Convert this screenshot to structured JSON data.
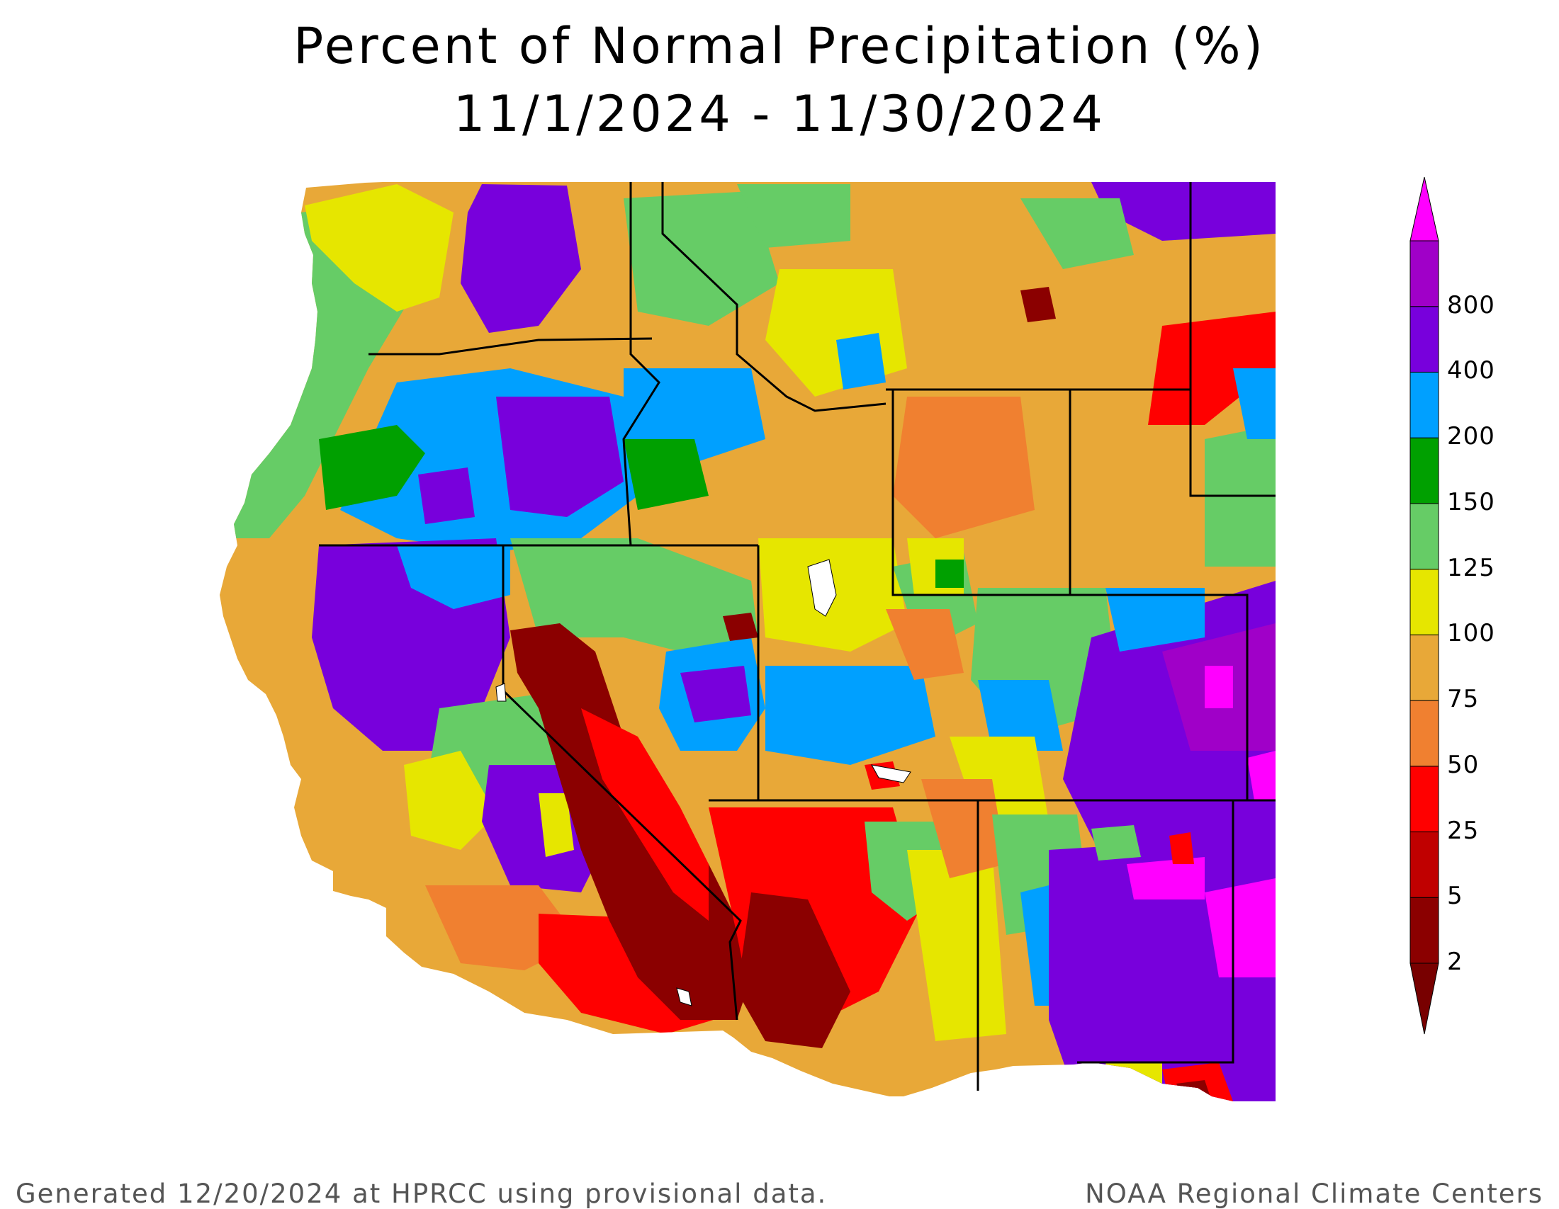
{
  "title": "Percent of Normal Precipitation (%)",
  "date_range": "11/1/2024 - 11/30/2024",
  "footer_left": "Generated 12/20/2024 at HPRCC using provisional data.",
  "footer_right": "NOAA Regional Climate Centers",
  "legend": {
    "levels": [
      {
        "label": "2",
        "color": "#8b0000"
      },
      {
        "label": "5",
        "color": "#c00000"
      },
      {
        "label": "25",
        "color": "#ff0000"
      },
      {
        "label": "50",
        "color": "#f08030"
      },
      {
        "label": "75",
        "color": "#e8a838"
      },
      {
        "label": "100",
        "color": "#e6e600"
      },
      {
        "label": "125",
        "color": "#66cc66"
      },
      {
        "label": "150",
        "color": "#00a000"
      },
      {
        "label": "200",
        "color": "#00a0ff"
      },
      {
        "label": "400",
        "color": "#7800dc"
      },
      {
        "label": "800",
        "color": "#a000c8"
      }
    ],
    "top_color": "#ff00ff",
    "bottom_color": "#780000"
  }
}
